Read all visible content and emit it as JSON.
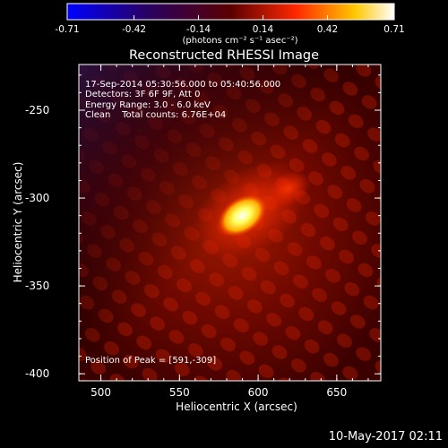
{
  "colorbar": {
    "ticks": [
      "-0.71",
      "-0.42",
      "-0.14",
      "0.14",
      "0.42",
      "0.71"
    ],
    "min": -0.71,
    "max": 0.71,
    "unit_label": "(photons cm⁻² s⁻¹ asec⁻²)"
  },
  "chart_data": {
    "type": "heatmap",
    "title": "Reconstructed RHESSI Image",
    "xlabel": "Heliocentric X (arcsec)",
    "ylabel": "Heliocentric Y (arcsec)",
    "xlim": [
      486,
      678
    ],
    "ylim": [
      -404,
      -224
    ],
    "x_ticks": [
      "500",
      "550",
      "600",
      "650"
    ],
    "y_ticks": [
      "-250",
      "-300",
      "-350",
      "-400"
    ],
    "peak": {
      "x": 591,
      "y": -309
    },
    "colormap": [
      "#0000ff",
      "#000000",
      "#ff0000",
      "#ffff00",
      "#ffffff"
    ]
  },
  "info": {
    "line1": "17-Sep-2014 05:30:56.000 to 05:40:56.000",
    "line2": "Detectors: 3F 6F 9F, Att 0",
    "line3": "Energy Range: 3.0 - 6.0 keV",
    "line4": "Clean    Total counts: 6.76E+04"
  },
  "peak_label": "Position of Peak = [591,-309]",
  "footer_date": "10-May-2017 02:11"
}
